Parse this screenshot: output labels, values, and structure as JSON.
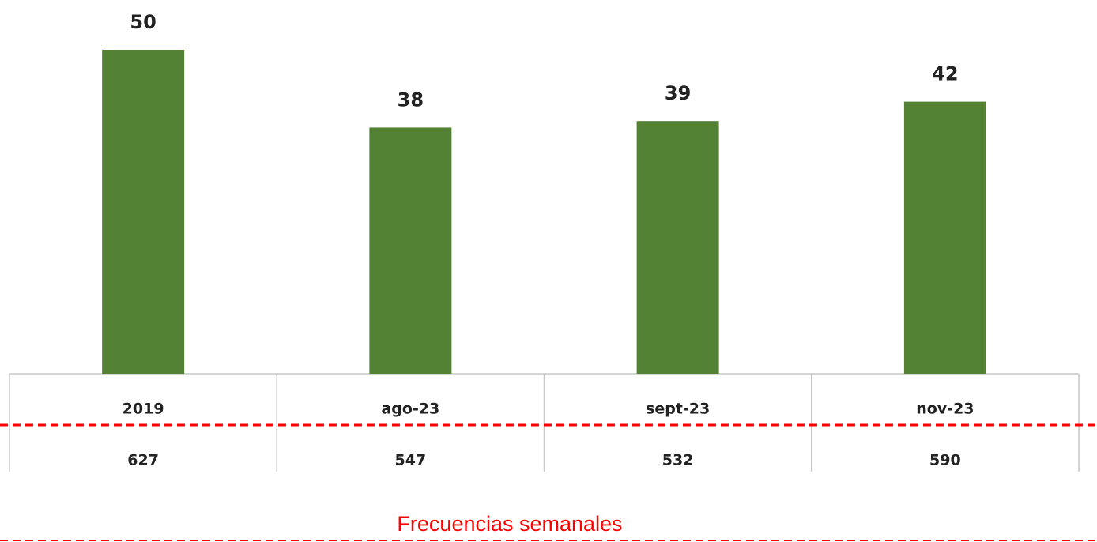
{
  "chart_data": {
    "type": "bar",
    "categories": [
      "2019",
      "ago-23",
      "sept-23",
      "nov-23"
    ],
    "values": [
      50,
      38,
      39,
      42
    ],
    "color": "#548235",
    "ylim": [
      0,
      50
    ],
    "table_row": {
      "label": "Frecuencias semanales",
      "values": [
        627,
        547,
        532,
        590
      ],
      "color": "#ff0000"
    }
  }
}
